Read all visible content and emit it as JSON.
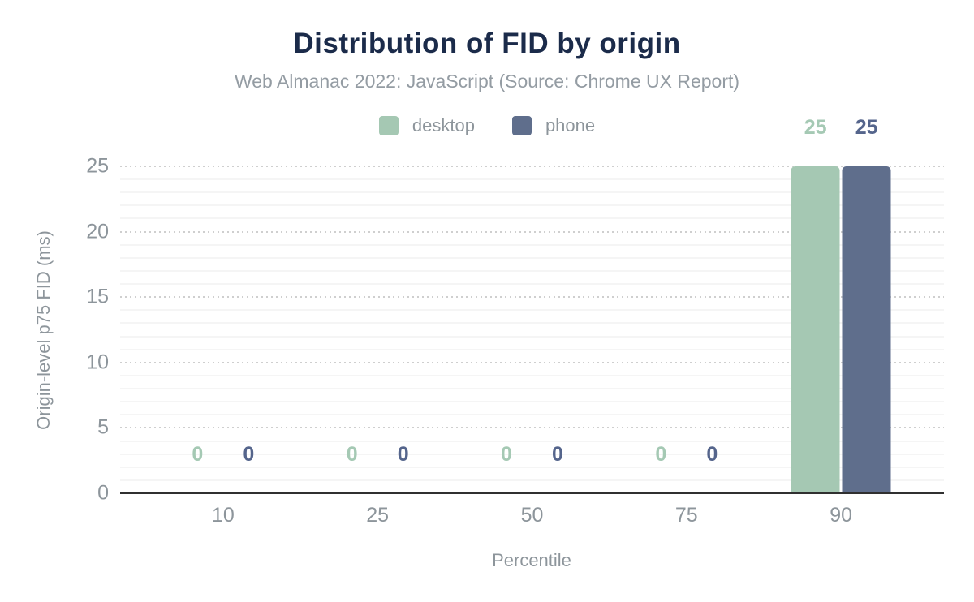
{
  "title": "Distribution of FID by origin",
  "subtitle": "Web Almanac 2022: JavaScript (Source: Chrome UX Report)",
  "legend": [
    {
      "label": "desktop",
      "color": "#a5c8b3"
    },
    {
      "label": "phone",
      "color": "#5f6e8c"
    }
  ],
  "chart_data": {
    "type": "bar",
    "title": "Distribution of FID by origin",
    "subtitle": "Web Almanac 2022: JavaScript (Source: Chrome UX Report)",
    "categories": [
      "10",
      "25",
      "50",
      "75",
      "90"
    ],
    "series": [
      {
        "name": "desktop",
        "color": "#a5c8b3",
        "label_color": "#a5c9b4",
        "values": [
          0,
          0,
          0,
          0,
          25
        ]
      },
      {
        "name": "phone",
        "color": "#5f6e8c",
        "label_color": "#55658c",
        "values": [
          0,
          0,
          0,
          0,
          25
        ]
      }
    ],
    "xlabel": "Percentile",
    "ylabel": "Origin-level p75 FID (ms)",
    "ylim": [
      0,
      25
    ],
    "yticks": [
      0,
      5,
      10,
      15,
      20,
      25
    ],
    "minor_grid_step": 1,
    "major_grid_step": 5,
    "grid": true,
    "legend_position": "top",
    "value_labels": true
  }
}
